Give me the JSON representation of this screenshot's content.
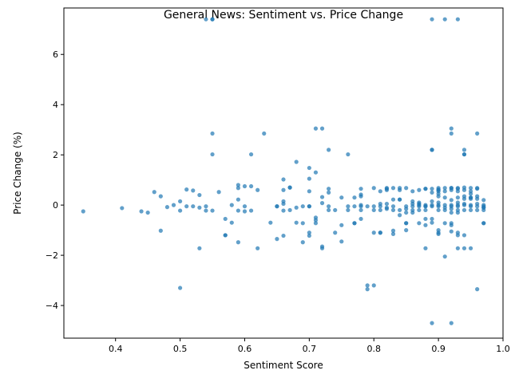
{
  "chart_data": {
    "type": "scatter",
    "title": "General News: Sentiment vs. Price Change",
    "xlabel": "Sentiment Score",
    "ylabel": "Price Change (%)",
    "xlim": [
      0.32,
      1.0
    ],
    "ylim": [
      -5.3,
      7.85
    ],
    "xticks": [
      0.4,
      0.5,
      0.6,
      0.7,
      0.8,
      0.9,
      1.0
    ],
    "xtick_labels": [
      "0.4",
      "0.5",
      "0.6",
      "0.7",
      "0.8",
      "0.9",
      "1.0"
    ],
    "yticks": [
      -4,
      -2,
      0,
      2,
      4,
      6
    ],
    "ytick_labels": [
      "−4",
      "−2",
      "0",
      "2",
      "4",
      "6"
    ],
    "grid": false,
    "marker_color": "#1f77b4",
    "marker_alpha": 0.7,
    "points": [
      [
        0.35,
        -0.25
      ],
      [
        0.41,
        -0.12
      ],
      [
        0.44,
        -0.25
      ],
      [
        0.45,
        -0.3
      ],
      [
        0.46,
        0.52
      ],
      [
        0.47,
        0.35
      ],
      [
        0.47,
        -1.02
      ],
      [
        0.48,
        -0.08
      ],
      [
        0.49,
        0.0
      ],
      [
        0.5,
        0.15
      ],
      [
        0.5,
        -0.22
      ],
      [
        0.5,
        -3.3
      ],
      [
        0.51,
        -0.05
      ],
      [
        0.51,
        0.62
      ],
      [
        0.52,
        -0.05
      ],
      [
        0.52,
        0.58
      ],
      [
        0.53,
        -0.1
      ],
      [
        0.53,
        0.4
      ],
      [
        0.53,
        -1.72
      ],
      [
        0.54,
        -0.05
      ],
      [
        0.54,
        -0.22
      ],
      [
        0.54,
        7.4
      ],
      [
        0.55,
        7.4
      ],
      [
        0.55,
        7.4
      ],
      [
        0.55,
        2.85
      ],
      [
        0.55,
        2.02
      ],
      [
        0.55,
        -0.22
      ],
      [
        0.56,
        0.52
      ],
      [
        0.57,
        -0.55
      ],
      [
        0.57,
        -1.2
      ],
      [
        0.57,
        -1.2
      ],
      [
        0.58,
        0.0
      ],
      [
        0.58,
        -0.7
      ],
      [
        0.59,
        0.68
      ],
      [
        0.59,
        0.8
      ],
      [
        0.59,
        -1.48
      ],
      [
        0.59,
        0.22
      ],
      [
        0.59,
        -0.22
      ],
      [
        0.6,
        0.75
      ],
      [
        0.6,
        -0.25
      ],
      [
        0.6,
        -0.05
      ],
      [
        0.61,
        0.75
      ],
      [
        0.61,
        -0.22
      ],
      [
        0.61,
        2.02
      ],
      [
        0.62,
        0.6
      ],
      [
        0.62,
        -1.72
      ],
      [
        0.63,
        2.85
      ],
      [
        0.64,
        -0.7
      ],
      [
        0.65,
        -0.05
      ],
      [
        0.65,
        -1.35
      ],
      [
        0.65,
        -0.05
      ],
      [
        0.66,
        -1.22
      ],
      [
        0.66,
        0.6
      ],
      [
        0.66,
        -0.22
      ],
      [
        0.66,
        0.05
      ],
      [
        0.66,
        0.15
      ],
      [
        0.66,
        1.02
      ],
      [
        0.67,
        -0.2
      ],
      [
        0.67,
        0.7
      ],
      [
        0.67,
        0.7
      ],
      [
        0.68,
        -0.7
      ],
      [
        0.68,
        -0.1
      ],
      [
        0.68,
        1.72
      ],
      [
        0.69,
        -0.05
      ],
      [
        0.69,
        -0.72
      ],
      [
        0.69,
        -1.48
      ],
      [
        0.7,
        1.48
      ],
      [
        0.7,
        1.05
      ],
      [
        0.7,
        -0.05
      ],
      [
        0.7,
        -1.22
      ],
      [
        0.7,
        -1.1
      ],
      [
        0.7,
        -0.05
      ],
      [
        0.7,
        0.55
      ],
      [
        0.71,
        3.05
      ],
      [
        0.71,
        1.3
      ],
      [
        0.71,
        -0.5
      ],
      [
        0.71,
        -0.6
      ],
      [
        0.71,
        -0.72
      ],
      [
        0.72,
        -1.72
      ],
      [
        0.72,
        0.08
      ],
      [
        0.72,
        3.05
      ],
      [
        0.72,
        0.32
      ],
      [
        0.72,
        -1.65
      ],
      [
        0.73,
        2.2
      ],
      [
        0.73,
        0.65
      ],
      [
        0.73,
        -0.05
      ],
      [
        0.73,
        0.5
      ],
      [
        0.73,
        -0.2
      ],
      [
        0.74,
        -0.2
      ],
      [
        0.74,
        -1.1
      ],
      [
        0.75,
        -1.45
      ],
      [
        0.75,
        0.3
      ],
      [
        0.75,
        -0.8
      ],
      [
        0.76,
        -0.2
      ],
      [
        0.76,
        -0.05
      ],
      [
        0.76,
        2.02
      ],
      [
        0.77,
        0.3
      ],
      [
        0.77,
        -0.05
      ],
      [
        0.77,
        -0.72
      ],
      [
        0.77,
        -0.72
      ],
      [
        0.78,
        -0.05
      ],
      [
        0.78,
        0.35
      ],
      [
        0.78,
        0.42
      ],
      [
        0.78,
        -0.55
      ],
      [
        0.78,
        0.0
      ],
      [
        0.78,
        -0.2
      ],
      [
        0.78,
        0.65
      ],
      [
        0.79,
        -0.05
      ],
      [
        0.79,
        -3.2
      ],
      [
        0.79,
        -3.35
      ],
      [
        0.8,
        -3.2
      ],
      [
        0.8,
        -1.1
      ],
      [
        0.8,
        0.68
      ],
      [
        0.8,
        -0.05
      ],
      [
        0.8,
        -0.2
      ],
      [
        0.81,
        -1.1
      ],
      [
        0.81,
        -1.1
      ],
      [
        0.81,
        0.55
      ],
      [
        0.81,
        -0.05
      ],
      [
        0.81,
        -0.2
      ],
      [
        0.81,
        0.05
      ],
      [
        0.82,
        0.68
      ],
      [
        0.82,
        0.65
      ],
      [
        0.82,
        -0.1
      ],
      [
        0.82,
        0.05
      ],
      [
        0.82,
        -0.15
      ],
      [
        0.82,
        0.6
      ],
      [
        0.83,
        0.22
      ],
      [
        0.83,
        -1.15
      ],
      [
        0.83,
        -1.02
      ],
      [
        0.83,
        -0.05
      ],
      [
        0.83,
        -0.2
      ],
      [
        0.83,
        0.68
      ],
      [
        0.84,
        0.68
      ],
      [
        0.84,
        0.6
      ],
      [
        0.84,
        -0.2
      ],
      [
        0.84,
        -0.4
      ],
      [
        0.84,
        0.22
      ],
      [
        0.84,
        0.22
      ],
      [
        0.85,
        -0.05
      ],
      [
        0.85,
        -0.15
      ],
      [
        0.85,
        0.68
      ],
      [
        0.85,
        -0.72
      ],
      [
        0.85,
        -0.72
      ],
      [
        0.85,
        -1.0
      ],
      [
        0.85,
        -0.3
      ],
      [
        0.86,
        0.05
      ],
      [
        0.86,
        -0.3
      ],
      [
        0.86,
        0.55
      ],
      [
        0.86,
        -0.05
      ],
      [
        0.86,
        -0.2
      ],
      [
        0.86,
        0.15
      ],
      [
        0.87,
        -0.72
      ],
      [
        0.87,
        0.05
      ],
      [
        0.87,
        -0.05
      ],
      [
        0.87,
        0.6
      ],
      [
        0.87,
        0.0
      ],
      [
        0.87,
        -0.2
      ],
      [
        0.87,
        0.1
      ],
      [
        0.88,
        0.65
      ],
      [
        0.88,
        -0.55
      ],
      [
        0.88,
        0.0
      ],
      [
        0.88,
        -0.05
      ],
      [
        0.88,
        -1.72
      ],
      [
        0.88,
        0.65
      ],
      [
        0.88,
        -0.8
      ],
      [
        0.88,
        -0.05
      ],
      [
        0.88,
        -0.2
      ],
      [
        0.89,
        2.2
      ],
      [
        0.89,
        2.2
      ],
      [
        0.89,
        -0.05
      ],
      [
        0.89,
        0.15
      ],
      [
        0.89,
        7.4
      ],
      [
        0.89,
        -4.7
      ],
      [
        0.89,
        -0.55
      ],
      [
        0.89,
        -0.7
      ],
      [
        0.89,
        0.0
      ],
      [
        0.89,
        0.65
      ],
      [
        0.89,
        0.5
      ],
      [
        0.9,
        0.68
      ],
      [
        0.9,
        0.6
      ],
      [
        0.9,
        0.55
      ],
      [
        0.9,
        -0.2
      ],
      [
        0.9,
        0.0
      ],
      [
        0.9,
        -1.0
      ],
      [
        0.9,
        -1.15
      ],
      [
        0.9,
        0.1
      ],
      [
        0.9,
        0.35
      ],
      [
        0.9,
        0.45
      ],
      [
        0.9,
        0.62
      ],
      [
        0.9,
        -1.1
      ],
      [
        0.9,
        -0.05
      ],
      [
        0.91,
        7.4
      ],
      [
        0.91,
        -2.05
      ],
      [
        0.91,
        0.3
      ],
      [
        0.91,
        0.0
      ],
      [
        0.91,
        0.68
      ],
      [
        0.91,
        -0.1
      ],
      [
        0.91,
        -0.2
      ],
      [
        0.91,
        0.55
      ],
      [
        0.91,
        -0.72
      ],
      [
        0.92,
        0.68
      ],
      [
        0.92,
        3.05
      ],
      [
        0.92,
        2.85
      ],
      [
        0.92,
        -0.3
      ],
      [
        0.92,
        -0.05
      ],
      [
        0.92,
        0.0
      ],
      [
        0.92,
        0.2
      ],
      [
        0.92,
        0.6
      ],
      [
        0.92,
        -0.15
      ],
      [
        0.92,
        -1.05
      ],
      [
        0.92,
        -0.72
      ],
      [
        0.92,
        -4.7
      ],
      [
        0.92,
        0.68
      ],
      [
        0.92,
        -0.8
      ],
      [
        0.93,
        7.4
      ],
      [
        0.93,
        0.65
      ],
      [
        0.93,
        -0.05
      ],
      [
        0.93,
        0.3
      ],
      [
        0.93,
        -0.2
      ],
      [
        0.93,
        0.0
      ],
      [
        0.93,
        -1.72
      ],
      [
        0.93,
        -1.2
      ],
      [
        0.93,
        0.68
      ],
      [
        0.93,
        -0.3
      ],
      [
        0.93,
        0.55
      ],
      [
        0.93,
        -1.1
      ],
      [
        0.93,
        0.1
      ],
      [
        0.94,
        0.7
      ],
      [
        0.94,
        0.25
      ],
      [
        0.94,
        0.0
      ],
      [
        0.94,
        2.2
      ],
      [
        0.94,
        2.02
      ],
      [
        0.94,
        -0.2
      ],
      [
        0.94,
        -1.72
      ],
      [
        0.94,
        -1.2
      ],
      [
        0.94,
        0.35
      ],
      [
        0.94,
        0.6
      ],
      [
        0.94,
        0.05
      ],
      [
        0.94,
        2.02
      ],
      [
        0.95,
        0.3
      ],
      [
        0.95,
        0.3
      ],
      [
        0.95,
        -0.05
      ],
      [
        0.95,
        0.45
      ],
      [
        0.95,
        0.55
      ],
      [
        0.95,
        0.68
      ],
      [
        0.95,
        -0.2
      ],
      [
        0.95,
        -1.72
      ],
      [
        0.95,
        0.0
      ],
      [
        0.95,
        0.25
      ],
      [
        0.96,
        2.85
      ],
      [
        0.96,
        0.68
      ],
      [
        0.96,
        0.35
      ],
      [
        0.96,
        0.05
      ],
      [
        0.96,
        -0.05
      ],
      [
        0.96,
        -3.35
      ],
      [
        0.96,
        0.65
      ],
      [
        0.96,
        -0.2
      ],
      [
        0.96,
        0.25
      ],
      [
        0.97,
        -0.2
      ],
      [
        0.97,
        0.2
      ],
      [
        0.97,
        -0.05
      ],
      [
        0.97,
        0.0
      ],
      [
        0.97,
        -0.1
      ],
      [
        0.97,
        -0.72
      ],
      [
        0.97,
        -0.72
      ],
      [
        0.97,
        -0.1
      ]
    ]
  }
}
